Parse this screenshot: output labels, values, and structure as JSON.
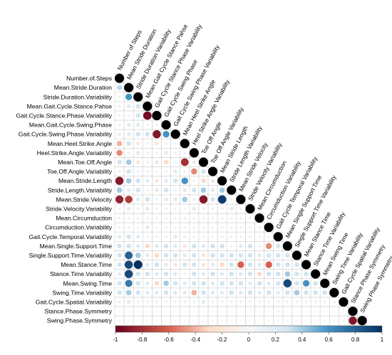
{
  "chart_data": {
    "type": "heatmap",
    "style": "lower-triangular circle correlation matrix",
    "title": "",
    "variables": [
      "Number.of.Steps",
      "Mean.Stride.Duration",
      "Stride.Duration.Variability",
      "Mean.Gait.Cycle.Stance.Pahse",
      "Gait.Cycle.Stance.Phase.Variability",
      "Mean.Gait.Cycle.Swing.Phase",
      "Gait.Cycle.Swing.Phase.Variability",
      "Mean.Heel.Strike.Angle",
      "Heel.Strike.Angle.Variability",
      "Mean.Toe.Off.Angle",
      "Toe.Off.Angle.Variability",
      "Mean.Stride.Length",
      "Stride.Length.Variability",
      "Mean.Stride.Velocity",
      "Stride.Velocity.Variability",
      "Mean.Circumduction",
      "Circumduction.Variability",
      "Gait.Cycle.Temporal.Variability",
      "Mean.Single.Support.Time",
      "Single.Support.Time.Variability",
      "Mean.Stance.Time",
      "Stance.Time.Variability",
      "Mean.Swing.Time",
      "Swing.Time.Variability",
      "Gait.Cycle.Spatial.Variability",
      "Stance.Phase.Symmetry",
      "Swing.Phase.Symmetry"
    ],
    "column_labels": [
      "Number of Steps",
      "Mean Stride Duration",
      "Stride Duration Variability",
      "Mean Gait Cycle Stance Pahse",
      "Gait Cycle Stance Phase Variability",
      "Gait Cycle Swing Phase",
      "Gait Cycle Swing Phase Variability",
      "Mean Heel Strike Angle",
      "Heel Strike Angle Variability",
      "Toe Off Angle",
      "Toe Off Angle Variability",
      "Mean Stride Length",
      "Stride Length Variability",
      "Mean Stride Velocity",
      "Stride Velocity Variability",
      "Mean Circumduction",
      "Circumduction Variability",
      "Gait Cycle Temporal Variability",
      "Mean Single Support Time",
      "Single Support Time Variability",
      "Mean Stance Time",
      "Stance Time Variability",
      "Mean Swing Time",
      "Swing Time Variability",
      "Gait Cycle Spatial Variability",
      "Stance Phase Symmetry",
      "Swing Phase Symmetry"
    ],
    "correlations_lower": [
      [
        1
      ],
      [
        0.35,
        1
      ],
      [
        0.1,
        0.6,
        1
      ],
      [
        0.1,
        0.2,
        0.3,
        1
      ],
      [
        0.1,
        0.1,
        0.3,
        -0.95,
        1
      ],
      [
        0.1,
        0.2,
        0.2,
        -0.1,
        0.1,
        1
      ],
      [
        0.15,
        0.2,
        0.3,
        0.3,
        -0.9,
        0.6,
        1
      ],
      [
        -0.4,
        0.3,
        -0.2,
        0.1,
        -0.2,
        0.1,
        0.1,
        1
      ],
      [
        -0.5,
        0.1,
        0.2,
        -0.1,
        0.1,
        0.2,
        0.1,
        0.1,
        1
      ],
      [
        0.3,
        0.4,
        -0.2,
        0.1,
        0.2,
        -0.3,
        0.1,
        -0.8,
        0.2,
        1
      ],
      [
        0.1,
        0.3,
        0.1,
        0.1,
        -0.1,
        0.1,
        0.2,
        0.1,
        -0.5,
        0.3,
        1
      ],
      [
        -0.9,
        0.4,
        0.3,
        0.2,
        -0.2,
        0.2,
        0.3,
        0.6,
        0.1,
        -0.3,
        0.2,
        1
      ],
      [
        0.4,
        0.2,
        0.3,
        0.1,
        0.2,
        0.3,
        0.1,
        0.2,
        0.3,
        0.4,
        0.2,
        0.4,
        1
      ],
      [
        -0.85,
        -0.75,
        0.2,
        0.3,
        0.1,
        0.2,
        0.2,
        0.4,
        0.1,
        -0.9,
        0.3,
        0.95,
        0.1,
        1
      ],
      [
        0.1,
        0.2,
        0.1,
        0.2,
        0.1,
        0.1,
        0.1,
        0.1,
        0.2,
        0.1,
        0.1,
        0.1,
        0.2,
        0.1,
        1
      ],
      [
        0.1,
        0.1,
        0.1,
        0.1,
        0.1,
        0.1,
        0.1,
        0.1,
        0.1,
        0.1,
        0.1,
        0.1,
        0.1,
        0.1,
        0.1,
        1
      ],
      [
        0.1,
        0.1,
        0.1,
        0.2,
        0.1,
        0.1,
        0.1,
        0.1,
        0.1,
        0.1,
        0.1,
        0.1,
        0.1,
        0.1,
        0.1,
        0.1,
        1
      ],
      [
        0.2,
        0.3,
        0.2,
        0.1,
        0.1,
        0.1,
        0.2,
        0.1,
        0.1,
        0.1,
        0.1,
        0.1,
        0.1,
        0.1,
        0.1,
        0.1,
        0.1,
        1
      ],
      [
        0.3,
        0.3,
        0.2,
        -0.3,
        0.2,
        0.3,
        0.2,
        -0.2,
        0.3,
        0.2,
        0.3,
        0.3,
        0.1,
        0.2,
        0.3,
        0.1,
        -0.5,
        0.3,
        1
      ],
      [
        0.3,
        0.8,
        0.4,
        0.2,
        -0.3,
        0.3,
        0.3,
        0.2,
        0.3,
        -0.2,
        0.3,
        0.3,
        0.3,
        0.3,
        0.3,
        0.2,
        0.3,
        0.3,
        0.3,
        1
      ],
      [
        0.3,
        0.9,
        1.0,
        0.2,
        0.3,
        0.2,
        -0.2,
        0.3,
        0.3,
        -0.2,
        0.2,
        -0.3,
        0.3,
        -0.6,
        0.3,
        0.2,
        -0.6,
        0.3,
        0.3,
        0.3,
        1
      ],
      [
        0.2,
        0.9,
        0.3,
        0.3,
        0.2,
        0.3,
        0.2,
        0.1,
        0.3,
        0.2,
        0.3,
        0.2,
        0.3,
        0.2,
        0.3,
        -0.3,
        0.3,
        0.3,
        0.4,
        0.3,
        0.3,
        1
      ],
      [
        0.3,
        0.7,
        0.3,
        0.2,
        -0.3,
        0.4,
        0.3,
        0.2,
        0.3,
        0.3,
        0.2,
        0.3,
        0.3,
        0.3,
        0.2,
        0.3,
        0.2,
        0.3,
        0.9,
        0.3,
        0.6,
        0.3,
        1
      ],
      [
        0.3,
        0.4,
        0.3,
        0.2,
        0.2,
        0.3,
        0.2,
        0.2,
        -0.4,
        0.3,
        0.2,
        0.2,
        0.3,
        0.2,
        0.3,
        0.2,
        0.3,
        0.2,
        0.3,
        0.4,
        0.3,
        0.3,
        0.3,
        1
      ],
      [
        0.1,
        0.2,
        0.1,
        0.1,
        0.1,
        0.1,
        0.1,
        0.1,
        0.1,
        0.2,
        0.1,
        0.1,
        0.1,
        0.1,
        0.1,
        0.1,
        0.1,
        0.1,
        0.1,
        0.1,
        0.1,
        0.1,
        0.1,
        0.1,
        1
      ],
      [
        0.05,
        0.05,
        0.05,
        0.05,
        0.05,
        0.05,
        0.05,
        0.05,
        0.05,
        0.05,
        0.05,
        0.05,
        0.05,
        0.05,
        0.05,
        0.05,
        0.05,
        0.1,
        0.05,
        0.05,
        0.05,
        0.05,
        0.05,
        0.05,
        0.05,
        1
      ],
      [
        0.05,
        0.05,
        0.05,
        0.05,
        0.05,
        0.05,
        0.05,
        0.05,
        0.05,
        0.05,
        0.05,
        0.05,
        0.05,
        0.05,
        0.05,
        0.05,
        0.05,
        0.05,
        0.05,
        0.05,
        0.05,
        0.05,
        0.05,
        0.05,
        0.05,
        -0.9,
        1
      ]
    ],
    "colorbar": {
      "range": [
        -1,
        1
      ],
      "ticks": [
        "-1",
        "-0.8",
        "-0.6",
        "-0.4",
        "-0.2",
        "0",
        "0.2",
        "0.4",
        "0.6",
        "0.8",
        "1"
      ],
      "colors": {
        "neg_strong": "#67001f",
        "neg_mid": "#d6604d",
        "neg_light": "#fddbc7",
        "zero": "#f7f7f7",
        "pos_light": "#d1e5f0",
        "pos_mid": "#4393c3",
        "pos_strong": "#053061",
        "diagonal": "#000000"
      }
    },
    "grid": true,
    "legend_placement": "bottom"
  }
}
